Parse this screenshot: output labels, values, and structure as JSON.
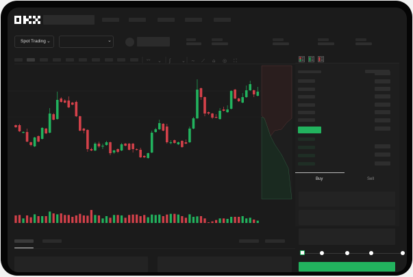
{
  "header": {
    "logo_text": "OKX",
    "market_selector_label": "Spot Trading",
    "market_selector_icon": "chevron-down-icon",
    "pair_selector_icon": "chevron-down-icon"
  },
  "chart_toolbar": {
    "icons": [
      "candle-type-icon",
      "chevron-down-icon",
      "indicator-icon",
      "chevron-down-icon",
      "line-icon",
      "ruler-icon",
      "camera-icon",
      "settings-icon",
      "fullscreen-icon"
    ]
  },
  "order_book": {
    "view_icons": [
      "orderbook-both-icon",
      "orderbook-bids-icon",
      "orderbook-asks-icon"
    ]
  },
  "trade_panel": {
    "tabs": [
      {
        "label": "Buy",
        "active": true
      },
      {
        "label": "Sell",
        "active": false
      }
    ],
    "slider_percent": 0,
    "slider_stops": 5,
    "accent_color": "#22b35e"
  },
  "colors": {
    "up": "#22b35e",
    "down": "#d4414a",
    "background": "#1b1b1b"
  },
  "chart_data": {
    "type": "candlestick",
    "title": "",
    "xlabel": "",
    "ylabel": "",
    "ylim": [
      0,
      140
    ],
    "grid": false,
    "ohlc": [
      [
        68,
        69,
        64,
        65
      ],
      [
        68,
        70,
        58,
        59
      ],
      [
        57,
        59,
        56,
        58
      ],
      [
        58,
        63,
        43,
        44
      ],
      [
        43,
        44,
        37,
        39
      ],
      [
        37,
        51,
        36,
        50
      ],
      [
        52,
        53,
        43,
        44
      ],
      [
        48,
        65,
        47,
        64
      ],
      [
        63,
        64,
        55,
        56
      ],
      [
        57,
        93,
        56,
        85
      ],
      [
        84,
        86,
        75,
        76
      ],
      [
        77,
        117,
        76,
        105
      ],
      [
        107,
        109,
        101,
        102
      ],
      [
        104,
        106,
        100,
        101
      ],
      [
        104,
        110,
        93,
        94
      ],
      [
        101,
        102,
        97,
        98
      ],
      [
        102,
        104,
        80,
        81
      ],
      [
        81,
        82,
        59,
        60
      ],
      [
        63,
        64,
        56,
        60
      ],
      [
        61,
        62,
        29,
        33
      ],
      [
        33,
        35,
        30,
        31
      ],
      [
        31,
        43,
        30,
        41
      ],
      [
        41,
        44,
        35,
        37
      ],
      [
        37,
        41,
        33,
        38
      ],
      [
        39,
        45,
        38,
        43
      ],
      [
        43,
        44,
        24,
        27
      ],
      [
        28,
        32,
        26,
        31
      ],
      [
        33,
        34,
        27,
        29
      ],
      [
        31,
        42,
        30,
        40
      ],
      [
        41,
        42,
        37,
        38
      ],
      [
        41,
        42,
        31,
        32
      ],
      [
        41,
        42,
        28,
        33
      ],
      [
        33,
        34,
        31,
        32
      ],
      [
        32,
        35,
        20,
        21
      ],
      [
        23,
        24,
        20,
        21
      ],
      [
        20,
        28,
        19,
        27
      ],
      [
        28,
        60,
        27,
        57
      ],
      [
        58,
        64,
        57,
        62
      ],
      [
        62,
        76,
        61,
        71
      ],
      [
        70,
        71,
        59,
        60
      ],
      [
        66,
        70,
        41,
        43
      ],
      [
        42,
        46,
        40,
        43
      ],
      [
        46,
        47,
        41,
        42
      ],
      [
        40,
        44,
        39,
        43
      ],
      [
        45,
        46,
        35,
        36
      ],
      [
        43,
        47,
        40,
        41
      ],
      [
        43,
        66,
        42,
        63
      ],
      [
        63,
        80,
        62,
        78
      ],
      [
        78,
        135,
        77,
        120
      ],
      [
        122,
        123,
        105,
        109
      ],
      [
        109,
        110,
        81,
        85
      ],
      [
        87,
        88,
        83,
        85
      ],
      [
        85,
        86,
        77,
        79
      ],
      [
        80,
        84,
        78,
        79
      ],
      [
        77,
        93,
        76,
        89
      ],
      [
        91,
        95,
        88,
        89
      ],
      [
        87,
        97,
        86,
        91
      ],
      [
        92,
        119,
        91,
        118
      ],
      [
        120,
        121,
        106,
        107
      ],
      [
        107,
        108,
        102,
        103
      ],
      [
        101,
        115,
        100,
        109
      ],
      [
        109,
        126,
        108,
        119
      ],
      [
        119,
        133,
        118,
        128
      ],
      [
        119,
        120,
        109,
        113
      ],
      [
        111,
        124,
        110,
        117
      ]
    ],
    "volume": [
      33,
      35,
      20,
      33,
      25,
      38,
      30,
      30,
      30,
      50,
      42,
      38,
      42,
      35,
      35,
      27,
      33,
      40,
      33,
      32,
      57,
      35,
      33,
      20,
      30,
      23,
      35,
      35,
      33,
      23,
      35,
      37,
      37,
      30,
      35,
      25,
      37,
      35,
      37,
      30,
      37,
      40,
      40,
      37,
      30,
      23,
      38,
      27,
      29,
      30,
      20,
      3,
      7,
      13,
      20,
      20,
      18,
      27,
      27,
      27,
      30,
      20,
      23,
      15,
      10
    ]
  }
}
